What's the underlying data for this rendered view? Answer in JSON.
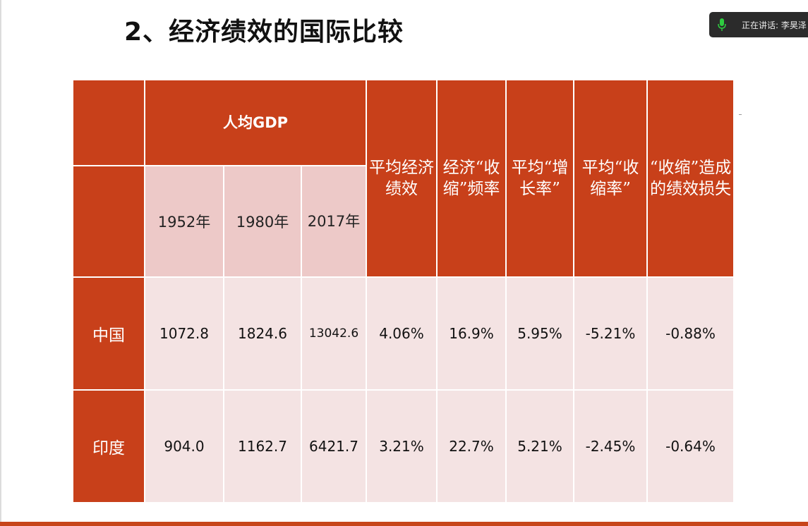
{
  "slide": {
    "title": "2、经济绩效的国际比较"
  },
  "speaker": {
    "text": "正在讲话: 李昊泽",
    "icon": "microphone-icon",
    "icon_color": "#2ecc40"
  },
  "table": {
    "gdp_header": "人均GDP",
    "years": [
      "1952年",
      "1980年",
      "2017年"
    ],
    "metrics": [
      "平均经济绩效",
      "经济“收缩”频率",
      "平均“增长率”",
      "平均“收缩率”",
      "“收缩”造成的绩效损失"
    ],
    "rows": [
      {
        "label": "中国",
        "values": [
          "1072.8",
          "1824.6",
          "13042.6",
          "4.06%",
          "16.9%",
          "5.95%",
          "-5.21%",
          "-0.88%"
        ]
      },
      {
        "label": "印度",
        "values": [
          "904.0",
          "1162.7",
          "6421.7",
          "3.21%",
          "22.7%",
          "5.21%",
          "-2.45%",
          "-0.64%"
        ]
      }
    ]
  },
  "colors": {
    "header": "#c8401a",
    "year_cell": "#edc9c8",
    "data_cell": "#f4e3e3",
    "bottom_bar": "#c7451a"
  }
}
